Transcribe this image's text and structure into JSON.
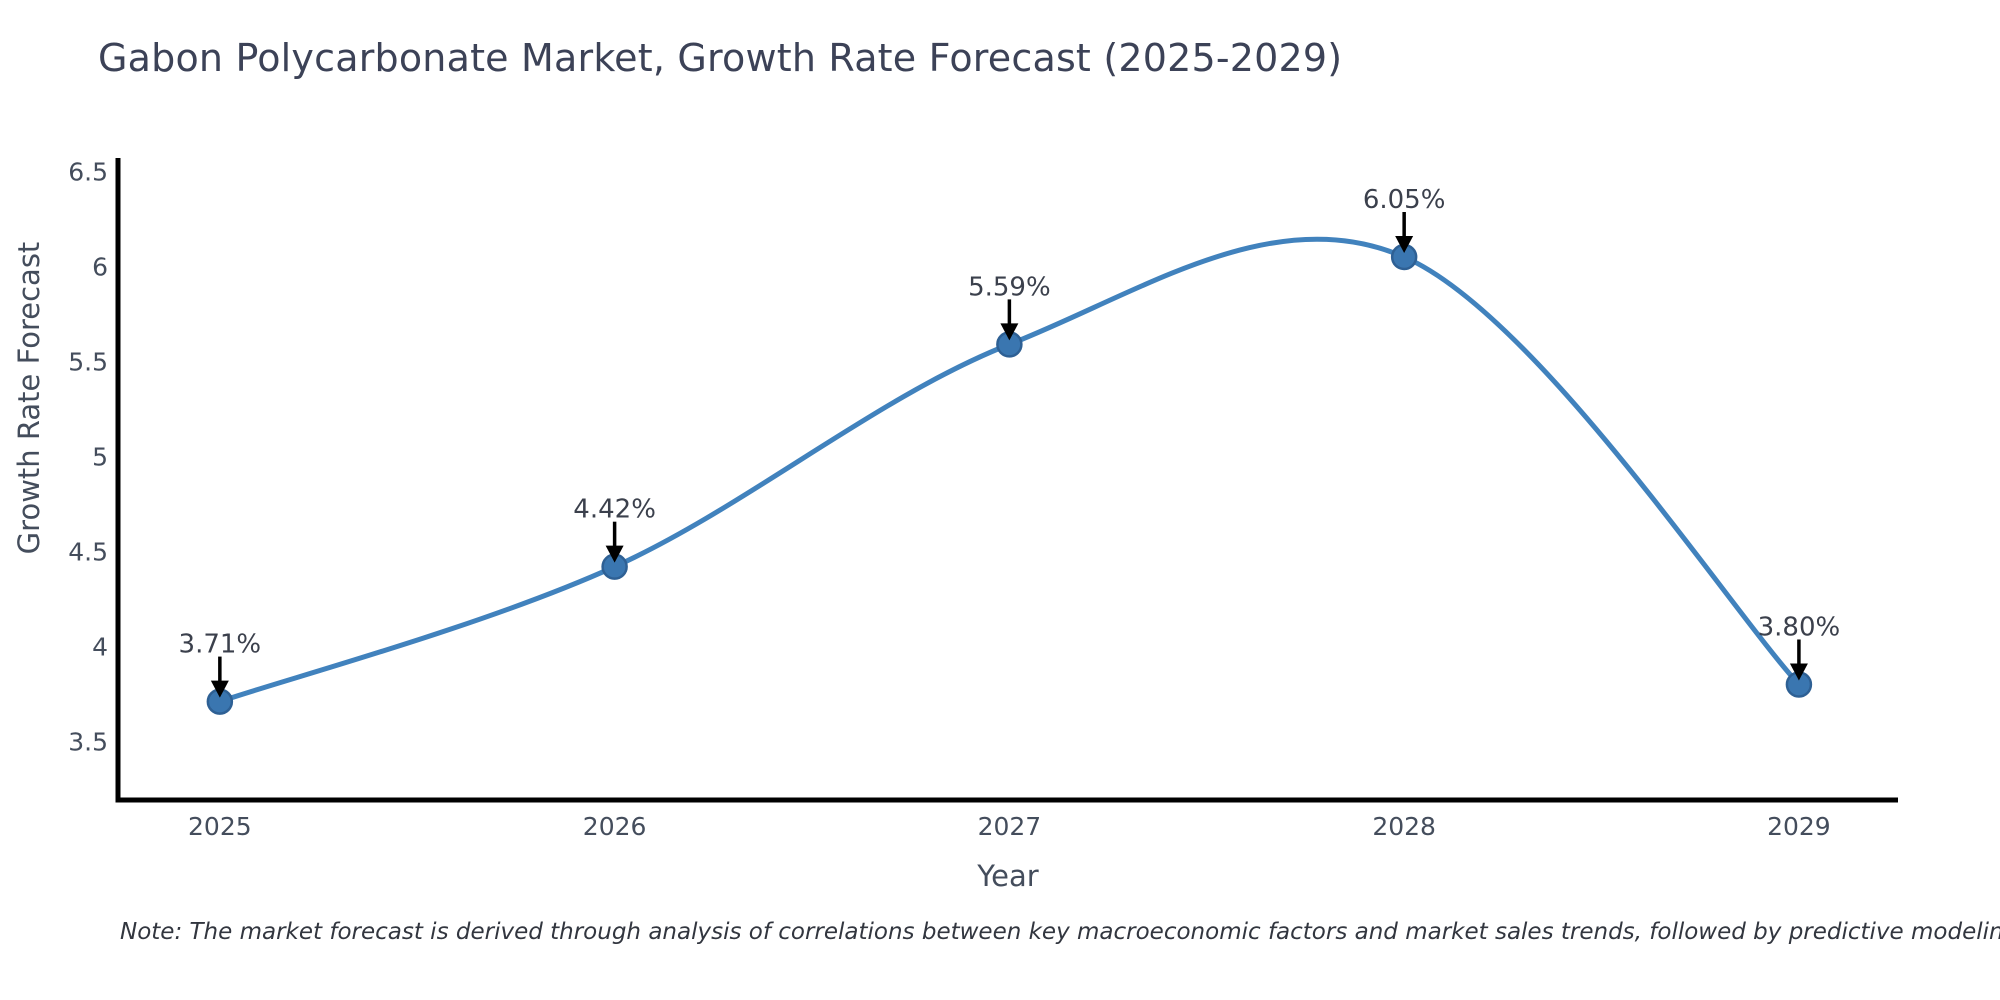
{
  "chart_data": {
    "type": "line",
    "title": "Gabon Polycarbonate Market, Growth Rate Forecast (2025-2029)",
    "xlabel": "Year",
    "ylabel": "Growth Rate Forecast",
    "line_shape": "spline",
    "grid": false,
    "legend": false,
    "x": [
      2025,
      2026,
      2027,
      2028,
      2029
    ],
    "values": [
      3.71,
      4.42,
      5.59,
      6.05,
      3.8
    ],
    "point_labels": [
      "3.71%",
      "4.42%",
      "5.59%",
      "6.05%",
      "3.80%"
    ],
    "xtick_labels": [
      "2025",
      "2026",
      "2027",
      "2028",
      "2029"
    ],
    "yticks": [
      3.5,
      4,
      4.5,
      5,
      5.5,
      6,
      6.5
    ],
    "ytick_labels": [
      "3.5",
      "4",
      "4.5",
      "5",
      "5.5",
      "6",
      "6.5"
    ],
    "xlim": [
      2024.742,
      2029.251
    ],
    "ylim": [
      3.192,
      6.571
    ],
    "colors": {
      "line": "#4182bd",
      "marker": "#3a76b0",
      "marker_edge": "#2e6094",
      "arrow": "#000000",
      "axis": "#000000",
      "tick_text": "#444d5c",
      "annotation_text": "#3b404c",
      "title_text": "#3c4257"
    }
  },
  "note": {
    "text": "Note: The market forecast is derived through analysis of correlations between key macroeconomic factors and market sales trends, followed by predictive modeling to project future sales"
  }
}
